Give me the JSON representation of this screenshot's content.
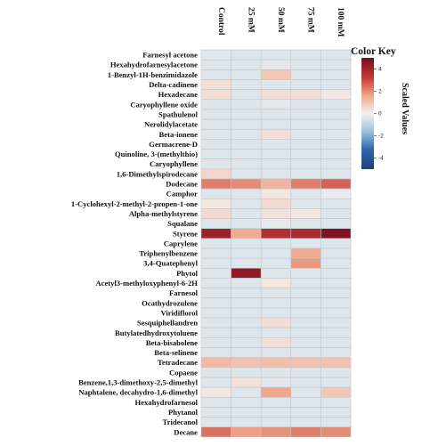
{
  "chart_data": {
    "type": "heatmap",
    "columns": [
      "Control",
      "25 mM",
      "50 mM",
      "75 mM",
      "100 mM"
    ],
    "rows": [
      "Farnesyl acetone",
      "Hexahydrofarnesylacetone",
      "1-Benzyl-1H-benzimidazole",
      "Delta-cadinene",
      "Hexadecane",
      "Caryophyllene oxide",
      "Spathulenol",
      "Nerolidylacetate",
      "Beta-ionene",
      "Germacrene-D",
      "Quinoline, 3-(methylthio)",
      "Caryophyllene",
      "1,6-Dimethylspirodecane",
      "Dodecane",
      "Camphor",
      "1-Cyclohexyl-2-methyl-2-propen-1-one",
      "Alpha-methylstyrene",
      "Squalane",
      "Styrene",
      "Caprylene",
      "Triphenylbenzene",
      "3,4-Quatephenyl",
      "Phytol",
      "Acetyl3-methyloxyphenyl-6-2H",
      "Farnesol",
      "Ocathydrozulene",
      "Viridiflorol",
      "Sesquiphellandren",
      "Butylatedhydroxytoluene",
      "Beta-bisabolene",
      "Beta-selinene",
      "Tetradecane",
      "Copaene",
      "Benzene,1,3-dimethoxy-2,5-dimethyl",
      "Naphtalene, decahydro-1,6-dimethyl",
      "Hexahydrofarnesol",
      "Phytanol",
      "Tridecanol",
      "Decane"
    ],
    "values": [
      [
        -0.3,
        -0.4,
        -0.4,
        -0.4,
        -0.4
      ],
      [
        -0.4,
        -0.4,
        -0.3,
        -0.4,
        -0.4
      ],
      [
        -0.4,
        -0.4,
        0.9,
        -0.4,
        -0.4
      ],
      [
        0.4,
        -0.4,
        -0.4,
        -0.4,
        -0.4
      ],
      [
        0.4,
        -0.4,
        0.4,
        0.4,
        0.2
      ],
      [
        -0.4,
        -0.4,
        -0.3,
        -0.4,
        -0.4
      ],
      [
        -0.4,
        -0.4,
        -0.4,
        -0.4,
        -0.4
      ],
      [
        -0.4,
        -0.4,
        -0.4,
        -0.4,
        -0.4
      ],
      [
        -0.4,
        -0.4,
        0.4,
        -0.4,
        -0.4
      ],
      [
        -0.4,
        -0.4,
        -0.4,
        -0.4,
        -0.4
      ],
      [
        -0.4,
        -0.4,
        -0.4,
        -0.4,
        -0.4
      ],
      [
        -0.4,
        -0.4,
        -0.4,
        -0.4,
        -0.4
      ],
      [
        0.6,
        -0.4,
        -0.4,
        -0.4,
        -0.4
      ],
      [
        2.2,
        2.0,
        1.3,
        2.2,
        2.6
      ],
      [
        -0.4,
        -0.4,
        0.2,
        -0.4,
        -0.2
      ],
      [
        0.2,
        -0.4,
        0.5,
        -0.4,
        -0.4
      ],
      [
        0.5,
        -0.4,
        0.3,
        0.2,
        -0.4
      ],
      [
        -0.4,
        -0.4,
        -0.2,
        -0.4,
        -0.4
      ],
      [
        4.2,
        1.5,
        3.6,
        3.8,
        4.8
      ],
      [
        -0.4,
        -0.4,
        -0.4,
        -0.4,
        -0.4
      ],
      [
        -0.4,
        -0.4,
        -0.4,
        1.5,
        -0.4
      ],
      [
        -0.4,
        -0.4,
        -0.4,
        1.8,
        -0.4
      ],
      [
        -0.4,
        4.5,
        -0.4,
        -0.4,
        -0.4
      ],
      [
        -0.4,
        -0.4,
        0.2,
        -0.4,
        -0.4
      ],
      [
        -0.4,
        -0.4,
        -0.4,
        -0.4,
        -0.4
      ],
      [
        -0.4,
        -0.4,
        -0.4,
        -0.4,
        -0.4
      ],
      [
        -0.4,
        -0.4,
        -0.4,
        -0.4,
        -0.4
      ],
      [
        -0.4,
        -0.4,
        0.4,
        -0.4,
        -0.4
      ],
      [
        -0.4,
        -0.4,
        -0.4,
        -0.4,
        -0.4
      ],
      [
        -0.4,
        -0.4,
        0.4,
        -0.4,
        -0.4
      ],
      [
        -0.4,
        -0.4,
        -0.4,
        -0.4,
        -0.4
      ],
      [
        1.2,
        1.0,
        1.1,
        1.0,
        1.0
      ],
      [
        -0.4,
        -0.4,
        -0.4,
        -0.4,
        -0.4
      ],
      [
        -0.4,
        0.3,
        -0.3,
        -0.4,
        -0.4
      ],
      [
        0.2,
        -0.4,
        1.6,
        -0.4,
        0.9
      ],
      [
        -0.4,
        -0.4,
        -0.4,
        -0.4,
        -0.4
      ],
      [
        -0.4,
        -0.4,
        -0.4,
        -0.4,
        -0.4
      ],
      [
        -0.4,
        -0.4,
        -0.4,
        -0.4,
        -0.4
      ],
      [
        2.4,
        1.7,
        1.9,
        2.2,
        2.0
      ]
    ],
    "color_key": {
      "title": "Color Key",
      "label": "Scaled Values",
      "ticks": [
        -4,
        -2,
        0,
        2,
        4
      ],
      "range": [
        -5,
        5
      ],
      "low_color": "#1f3f7a",
      "mid_color": "#f4f0ef",
      "high_color": "#7a0d1e"
    }
  }
}
